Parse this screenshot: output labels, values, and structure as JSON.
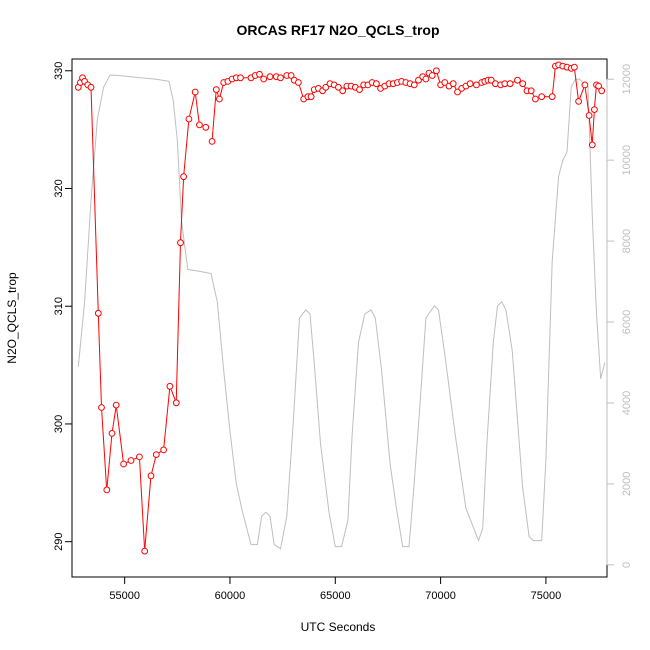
{
  "chart_data": {
    "type": "line",
    "title": "ORCAS RF17 N2O_QCLS_trop",
    "xlabel": "UTC Seconds",
    "ylabel": "N2O_QCLS_trop",
    "xlim": [
      52500,
      77900
    ],
    "ylim": [
      287,
      331
    ],
    "y2lim": [
      -300,
      12500
    ],
    "x_ticks": [
      55000,
      60000,
      65000,
      70000,
      75000
    ],
    "y_ticks": [
      290,
      300,
      310,
      320,
      330
    ],
    "y2_ticks": [
      0,
      2000,
      4000,
      6000,
      8000,
      10000,
      12000
    ],
    "grid": false,
    "legend": "none",
    "colors": {
      "n2o": "#ff0000",
      "altitude": "#bebebe",
      "axis": "#000000",
      "right_axis": "#bebebe"
    },
    "series": [
      {
        "role": "primary",
        "axis": "left",
        "style": "line-with-open-circles",
        "x": [
          52800,
          52900,
          53000,
          53100,
          53250,
          53400,
          53750,
          53900,
          54150,
          54400,
          54600,
          54950,
          55300,
          55700,
          55950,
          56250,
          56500,
          56850,
          57150,
          57450,
          57650,
          57800,
          58050,
          58350,
          58550,
          58850,
          59150,
          59350,
          59500,
          59700,
          59900,
          60100,
          60300,
          60500,
          61000,
          61200,
          61400,
          61600,
          61900,
          62200,
          62400,
          62700,
          62900,
          63050,
          63250,
          63500,
          63700,
          63850,
          64000,
          64200,
          64400,
          64550,
          64750,
          64950,
          65150,
          65350,
          65550,
          65750,
          65950,
          66150,
          66350,
          66550,
          66750,
          66950,
          67150,
          67350,
          67550,
          67750,
          67950,
          68150,
          68350,
          68550,
          68750,
          68950,
          69150,
          69300,
          69450,
          69600,
          69800,
          70000,
          70200,
          70400,
          70600,
          70800,
          71000,
          71200,
          71400,
          71700,
          71950,
          72100,
          72250,
          72400,
          72600,
          72850,
          73050,
          73300,
          73650,
          73900,
          74100,
          74300,
          74500,
          74800,
          75300,
          75450,
          75600,
          75800,
          76000,
          76200,
          76350,
          76550,
          76850,
          77050,
          77200,
          77300,
          77400,
          77500,
          77650
        ],
        "y": [
          328.6,
          329.0,
          329.4,
          329.1,
          328.8,
          328.6,
          309.4,
          301.4,
          294.4,
          299.2,
          301.6,
          296.6,
          296.9,
          297.2,
          289.2,
          295.6,
          297.4,
          297.8,
          303.2,
          301.8,
          315.4,
          321.0,
          325.9,
          328.2,
          325.4,
          325.2,
          324.0,
          328.4,
          327.6,
          329.0,
          329.1,
          329.3,
          329.4,
          329.4,
          329.4,
          329.6,
          329.7,
          329.3,
          329.5,
          329.5,
          329.4,
          329.6,
          329.6,
          329.2,
          329.0,
          327.6,
          327.8,
          327.8,
          328.4,
          328.5,
          328.3,
          328.6,
          328.9,
          328.8,
          328.6,
          328.3,
          328.7,
          328.7,
          328.6,
          328.4,
          328.8,
          328.8,
          329.0,
          328.9,
          328.5,
          328.7,
          328.9,
          328.9,
          329.0,
          329.1,
          329.0,
          328.9,
          328.8,
          329.2,
          329.5,
          329.3,
          329.8,
          329.6,
          330.0,
          328.8,
          329.0,
          328.7,
          328.9,
          328.2,
          328.5,
          328.7,
          328.9,
          328.8,
          329.0,
          329.1,
          329.2,
          329.2,
          328.9,
          328.8,
          328.9,
          328.9,
          329.2,
          328.9,
          328.3,
          328.3,
          327.6,
          327.8,
          327.8,
          330.4,
          330.5,
          330.4,
          330.3,
          330.2,
          330.3,
          327.4,
          328.8,
          326.2,
          323.7,
          326.7,
          328.8,
          328.7,
          328.3
        ],
        "connected": [
          true,
          true,
          true,
          true,
          true,
          true,
          true,
          true,
          true,
          true,
          true,
          true,
          true,
          true,
          true,
          true,
          true,
          true,
          true,
          true,
          true,
          true,
          true,
          true,
          true,
          true,
          false,
          true,
          true,
          true,
          true,
          true,
          true,
          true,
          true,
          true,
          true,
          true,
          true,
          true,
          true,
          true,
          true,
          true,
          true,
          true,
          true,
          true,
          true,
          true,
          true,
          true,
          true,
          true,
          true,
          true,
          true,
          true,
          true,
          true,
          true,
          true,
          true,
          true,
          true,
          true,
          true,
          true,
          true,
          true,
          true,
          true,
          true,
          true,
          true,
          true,
          true,
          true,
          true,
          true,
          true,
          true,
          true,
          true,
          true,
          true,
          true,
          true,
          true,
          true,
          true,
          true,
          true,
          true,
          true,
          true,
          true,
          true,
          true,
          true,
          true,
          true,
          true,
          true,
          true,
          true,
          true,
          true,
          true,
          true,
          true,
          true,
          true,
          true,
          true,
          true,
          true
        ]
      },
      {
        "role": "secondary",
        "axis": "right",
        "style": "line",
        "x": [
          52800,
          53100,
          53400,
          53700,
          54000,
          54300,
          54600,
          55500,
          56500,
          57100,
          57300,
          57500,
          57700,
          58000,
          58600,
          59100,
          59400,
          59700,
          60000,
          60300,
          60600,
          60800,
          61000,
          61300,
          61500,
          61700,
          61900,
          62100,
          62400,
          62700,
          63000,
          63300,
          63600,
          63800,
          64000,
          64300,
          64700,
          65000,
          65300,
          65600,
          65800,
          66100,
          66400,
          66700,
          66900,
          67200,
          67600,
          67900,
          68200,
          68500,
          68700,
          69000,
          69300,
          69700,
          69900,
          70200,
          70700,
          71200,
          71800,
          72000,
          72200,
          72500,
          72700,
          72900,
          73100,
          73400,
          73900,
          74200,
          74400,
          74800,
          75000,
          75300,
          75600,
          75800,
          76000,
          76200,
          76400,
          76600,
          77000,
          77200,
          77400,
          77600,
          77800
        ],
        "y": [
          4900,
          6500,
          9000,
          11000,
          11800,
          12100,
          12100,
          12050,
          12000,
          11950,
          11500,
          10500,
          8500,
          7300,
          7250,
          7200,
          6500,
          4800,
          3300,
          2000,
          1300,
          900,
          500,
          500,
          1200,
          1300,
          1200,
          500,
          400,
          1200,
          3500,
          6100,
          6300,
          6200,
          5000,
          3000,
          1300,
          450,
          450,
          1100,
          3200,
          5500,
          6200,
          6300,
          6100,
          4800,
          2500,
          1400,
          450,
          450,
          1700,
          3800,
          6100,
          6400,
          6300,
          5200,
          3200,
          1400,
          600,
          900,
          3000,
          5500,
          6400,
          6500,
          6300,
          5300,
          1900,
          700,
          600,
          600,
          2600,
          7500,
          9600,
          10000,
          10200,
          11800,
          12000,
          12000,
          11800,
          8600,
          6200,
          4600,
          5000
        ]
      }
    ]
  }
}
